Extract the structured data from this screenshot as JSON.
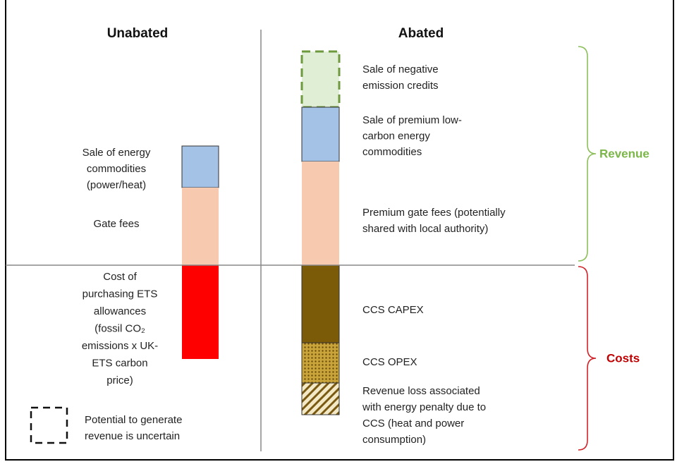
{
  "headers": {
    "unabated": "Unabated",
    "abated": "Abated"
  },
  "labels": [
    {
      "lines": [
        "Sale of energy",
        "commodities",
        "(power/heat)"
      ]
    },
    {
      "lines": [
        "Gate fees"
      ]
    },
    {
      "lines": [
        "Cost of",
        "purchasing ETS",
        "allowances",
        "(fossil CO₂",
        "emissions x UK-",
        "ETS carbon",
        "price)"
      ]
    },
    {
      "lines": [
        "Sale of negative",
        "emission credits"
      ]
    },
    {
      "lines": [
        "Sale of premium low-",
        "carbon energy",
        "commodities"
      ]
    },
    {
      "lines": [
        "Premium gate fees (potentially",
        "shared with local authority)"
      ]
    },
    {
      "lines": [
        "CCS CAPEX"
      ]
    },
    {
      "lines": [
        "CCS OPEX"
      ]
    },
    {
      "lines": [
        "Revenue loss associated",
        "with energy penalty due to",
        "CCS (heat and power",
        "consumption)"
      ]
    }
  ],
  "legend": {
    "lines": [
      "Potential to generate",
      "revenue is uncertain"
    ]
  },
  "brackets": {
    "revenue": "Revenue",
    "costs": "Costs"
  }
}
